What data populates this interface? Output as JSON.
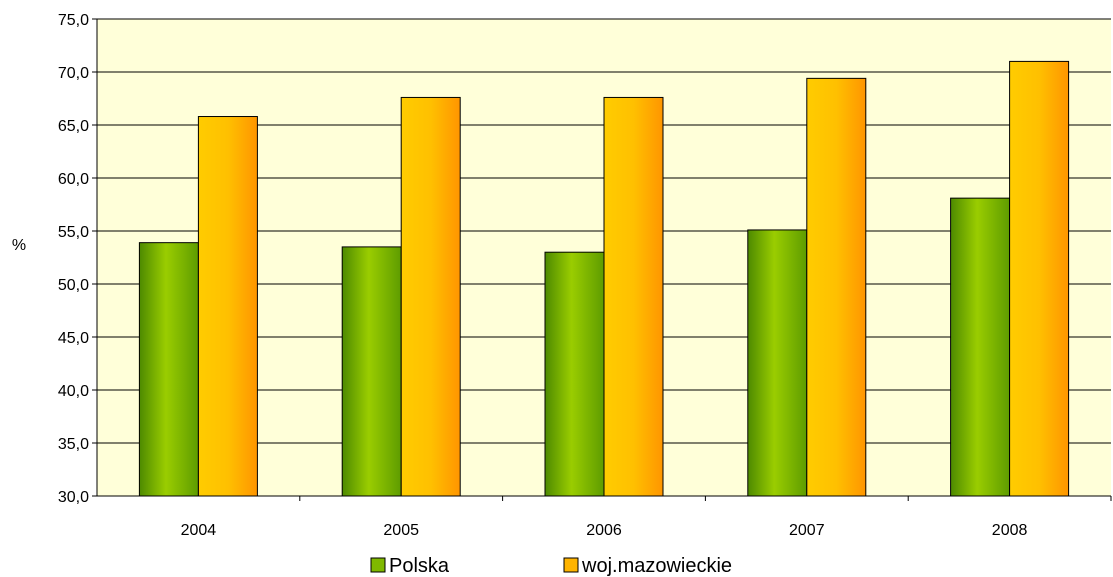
{
  "chart_data": {
    "type": "bar",
    "categories": [
      "2004",
      "2005",
      "2006",
      "2007",
      "2008"
    ],
    "series": [
      {
        "name": "Polska",
        "values": [
          53.9,
          53.5,
          53.0,
          55.1,
          58.1
        ],
        "color": "#7fb800"
      },
      {
        "name": "woj.mazowieckie",
        "values": [
          65.8,
          67.6,
          67.6,
          69.4,
          71.0
        ],
        "color": "#ffb400"
      }
    ],
    "ylabel": "%",
    "ylim": [
      30,
      75
    ],
    "yticks": [
      "30,0",
      "35,0",
      "40,0",
      "45,0",
      "50,0",
      "55,0",
      "60,0",
      "65,0",
      "70,0",
      "75,0"
    ],
    "grid": true,
    "legend": "bottom",
    "plot_background": "#ffffd9"
  }
}
